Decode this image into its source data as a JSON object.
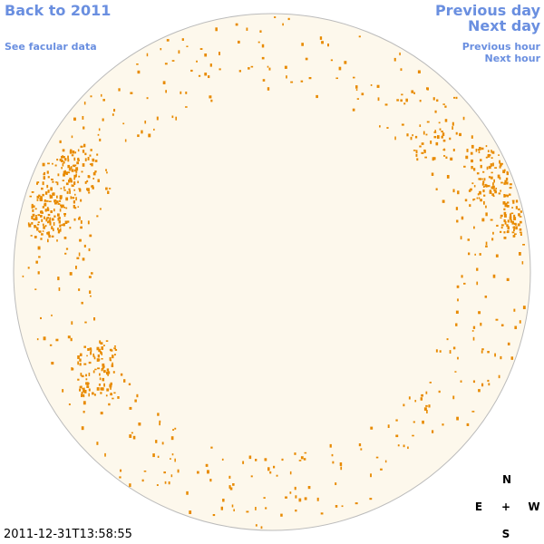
{
  "links": {
    "back": "Back to 2011",
    "facular": "See facular data",
    "previous_day": "Previous day",
    "next_day": "Next day",
    "previous_hour": "Previous hour",
    "next_hour": "Next hour"
  },
  "compass": {
    "north": "N",
    "east": "E",
    "center": "+",
    "west": "W",
    "south": "S"
  },
  "timestamp": "2011-12-31T13:58:55"
}
